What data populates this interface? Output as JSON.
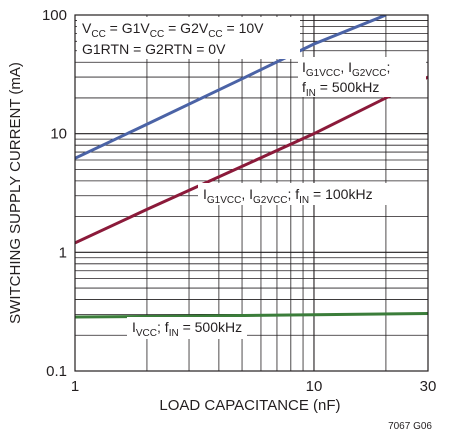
{
  "chart_data": {
    "type": "line",
    "xlabel": "LOAD CAPACITANCE (nF)",
    "ylabel": "SWITCHING SUPPLY CURRENT (mA)",
    "xscale": "log",
    "yscale": "log",
    "xlim": [
      1,
      30
    ],
    "ylim": [
      0.1,
      100
    ],
    "grid": true,
    "x_tick_labels": [
      "1",
      "10",
      "30"
    ],
    "y_tick_labels": [
      "0.1",
      "1",
      "10",
      "100"
    ],
    "series": [
      {
        "name": "IG1VCC, IG2VCC; fIN = 500kHz",
        "color": "#4b63a6",
        "x": [
          1,
          2,
          5,
          10,
          20
        ],
        "y": [
          6.2,
          12.0,
          29.0,
          57.0,
          100.0
        ]
      },
      {
        "name": "IG1VCC, IG2VCC; fIN = 100kHz",
        "color": "#8b1a3a",
        "x": [
          1,
          2,
          5,
          10,
          20,
          30
        ],
        "y": [
          1.2,
          2.3,
          5.3,
          10.0,
          20.0,
          30.0
        ]
      },
      {
        "name": "IVCC; fIN = 500kHz",
        "color": "#3b7d3a",
        "x": [
          1,
          3,
          10,
          30
        ],
        "y": [
          0.285,
          0.29,
          0.298,
          0.305
        ]
      }
    ],
    "annotations": {
      "conditions": {
        "line1": [
          "V",
          "CC",
          " =  G1V",
          "CC",
          " = G2V",
          "CC",
          " = 10V"
        ],
        "line2": "G1RTN = G2RTN = 0V"
      },
      "label_500": {
        "line1": [
          "I",
          "G1VCC",
          ", I",
          "G2VCC",
          ";"
        ],
        "line2": [
          "f",
          "IN",
          " = 500kHz"
        ]
      },
      "label_100": [
        "I",
        "G1VCC",
        ", I",
        "G2VCC",
        "; f",
        "IN",
        " = 100kHz"
      ],
      "label_vcc": [
        "I",
        "VCC",
        "; f",
        "IN",
        " = 500kHz"
      ]
    }
  },
  "figure_code": "7067 G06"
}
